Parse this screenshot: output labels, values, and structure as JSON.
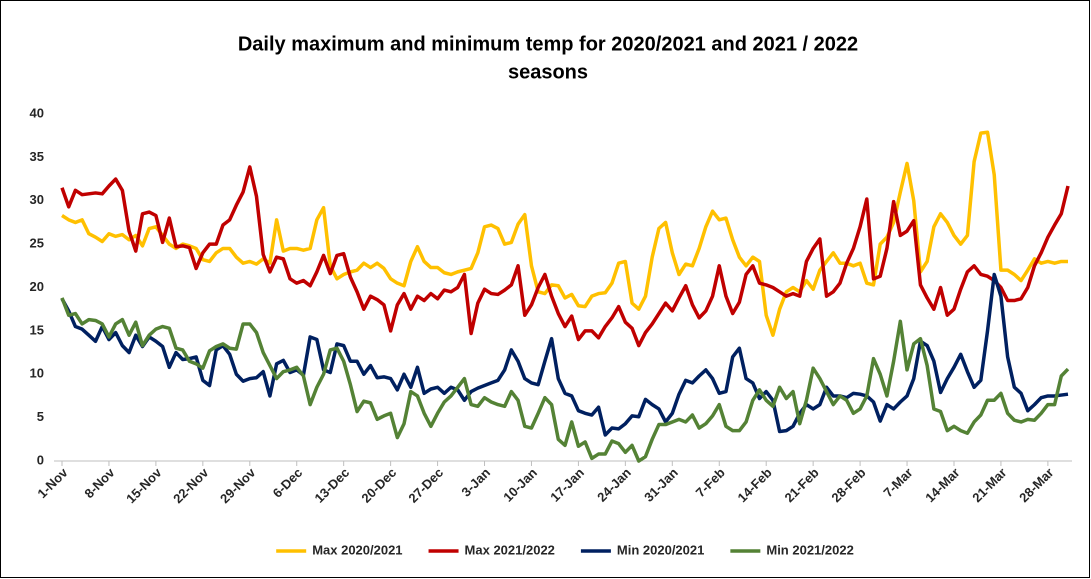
{
  "chart_data": {
    "type": "line",
    "title": "Daily maximum and minimum temp for 2020/2021 and 2021 / 2022",
    "subtitle": "seasons",
    "categories": [
      "1-Nov",
      null,
      null,
      null,
      null,
      null,
      null,
      "8-Nov",
      null,
      null,
      null,
      null,
      null,
      null,
      "15-Nov",
      null,
      null,
      null,
      null,
      null,
      null,
      "22-Nov",
      null,
      null,
      null,
      null,
      null,
      null,
      "29-Nov",
      null,
      null,
      null,
      null,
      null,
      null,
      "6-Dec",
      null,
      null,
      null,
      null,
      null,
      null,
      "13-Dec",
      null,
      null,
      null,
      null,
      null,
      null,
      "20-Dec",
      null,
      null,
      null,
      null,
      null,
      null,
      "27-Dec",
      null,
      null,
      null,
      null,
      null,
      null,
      "3-Jan",
      null,
      null,
      null,
      null,
      null,
      null,
      "10-Jan",
      null,
      null,
      null,
      null,
      null,
      null,
      "17-Jan",
      null,
      null,
      null,
      null,
      null,
      null,
      "24-Jan",
      null,
      null,
      null,
      null,
      null,
      null,
      "31-Jan",
      null,
      null,
      null,
      null,
      null,
      null,
      "7-Feb",
      null,
      null,
      null,
      null,
      null,
      null,
      "14-Feb",
      null,
      null,
      null,
      null,
      null,
      null,
      "21-Feb",
      null,
      null,
      null,
      null,
      null,
      null,
      "28-Feb",
      null,
      null,
      null,
      null,
      null,
      null,
      "7-Mar",
      null,
      null,
      null,
      null,
      null,
      null,
      "14-Mar",
      null,
      null,
      null,
      null,
      null,
      null,
      "21-Mar",
      null,
      null,
      null,
      null,
      null,
      null,
      "28-Mar",
      null,
      null,
      null
    ],
    "series": [
      {
        "name": "Max 2020/2021",
        "color": "#ffc000",
        "values": [
          28.3,
          27.8,
          27.5,
          27.8,
          26.2,
          25.8,
          25.3,
          26.2,
          25.9,
          26.1,
          25.5,
          26.0,
          24.8,
          26.8,
          27.0,
          26.0,
          25.0,
          24.5,
          25.0,
          24.8,
          24.5,
          23.2,
          23.0,
          24.0,
          24.5,
          24.5,
          23.5,
          22.8,
          23.0,
          22.7,
          23.3,
          22.8,
          27.8,
          24.2,
          24.5,
          24.5,
          24.3,
          24.5,
          27.8,
          29.2,
          22.5,
          21.0,
          21.5,
          21.8,
          22.0,
          22.8,
          22.3,
          22.8,
          22.2,
          21.0,
          20.5,
          20.2,
          23.0,
          24.7,
          23.0,
          22.3,
          22.3,
          21.7,
          21.5,
          21.8,
          22.0,
          22.2,
          24.0,
          27.0,
          27.2,
          26.8,
          25.0,
          25.2,
          27.3,
          28.4,
          22.5,
          19.5,
          19.3,
          20.3,
          20.2,
          18.8,
          19.2,
          17.9,
          17.8,
          19.0,
          19.3,
          19.4,
          20.5,
          22.8,
          23.0,
          18.2,
          17.5,
          19.0,
          23.5,
          26.8,
          27.5,
          24.0,
          21.5,
          22.7,
          22.5,
          24.5,
          27.0,
          28.8,
          27.8,
          28.0,
          25.5,
          23.5,
          22.5,
          23.5,
          23.0,
          16.8,
          14.5,
          17.5,
          19.5,
          20.0,
          19.5,
          20.8,
          19.8,
          22.0,
          23.0,
          24.0,
          22.8,
          22.8,
          22.5,
          22.8,
          20.5,
          20.3,
          25.0,
          25.8,
          27.5,
          31.0,
          34.3,
          30.0,
          21.8,
          23.0,
          27.0,
          28.5,
          27.5,
          26.0,
          25.0,
          26.0,
          34.5,
          37.8,
          37.9,
          33.0,
          22.0,
          22.0,
          21.5,
          20.8,
          22.0,
          23.3,
          22.8,
          23.0,
          22.8,
          23.0,
          23.0
        ]
      },
      {
        "name": "Max 2021/2022",
        "color": "#c00000",
        "values": [
          31.5,
          29.3,
          31.2,
          30.7,
          30.8,
          30.9,
          30.8,
          31.7,
          32.5,
          31.2,
          26.5,
          24.2,
          28.5,
          28.7,
          28.3,
          25.2,
          28.0,
          24.7,
          24.8,
          24.6,
          22.2,
          24.0,
          25.0,
          25.0,
          27.2,
          27.8,
          29.5,
          31.0,
          33.9,
          30.5,
          23.8,
          21.8,
          23.5,
          23.3,
          21.0,
          20.5,
          20.8,
          20.2,
          21.8,
          23.7,
          21.6,
          23.7,
          23.9,
          21.2,
          19.5,
          17.5,
          19.0,
          18.6,
          18.0,
          15.0,
          18.0,
          19.3,
          17.5,
          19.0,
          18.5,
          19.3,
          18.7,
          19.7,
          19.5,
          20.0,
          21.5,
          14.7,
          18.2,
          19.8,
          19.3,
          19.2,
          19.7,
          20.3,
          22.5,
          16.8,
          18.0,
          20.0,
          21.5,
          19.0,
          17.0,
          15.5,
          16.7,
          14.0,
          15.0,
          15.0,
          14.2,
          15.5,
          16.5,
          17.8,
          16.0,
          15.3,
          13.3,
          14.8,
          15.8,
          17.0,
          18.2,
          17.3,
          18.8,
          20.2,
          18.0,
          16.5,
          17.3,
          19.0,
          22.5,
          19.0,
          17.0,
          18.3,
          21.5,
          22.5,
          20.5,
          20.3,
          20.0,
          19.5,
          19.0,
          19.3,
          19.0,
          23.0,
          24.5,
          25.6,
          19.0,
          19.5,
          20.5,
          22.8,
          24.5,
          27.0,
          30.2,
          21.0,
          21.3,
          24.5,
          29.9,
          26.0,
          26.5,
          27.7,
          20.3,
          18.8,
          17.5,
          20.0,
          16.8,
          17.5,
          19.8,
          21.8,
          22.5,
          21.5,
          21.3,
          20.8,
          20.0,
          18.5,
          18.5,
          18.7,
          20.0,
          22.5,
          24.0,
          25.8,
          27.2,
          28.5,
          31.7
        ]
      },
      {
        "name": "Min 2020/2021",
        "color": "#002060",
        "values": [
          18.7,
          17.3,
          15.5,
          15.2,
          14.5,
          13.8,
          15.5,
          14.0,
          14.8,
          13.3,
          12.5,
          14.5,
          13.2,
          14.3,
          13.8,
          13.2,
          10.8,
          12.5,
          11.7,
          11.8,
          12.0,
          9.3,
          8.7,
          12.8,
          13.3,
          12.3,
          10.0,
          9.2,
          9.5,
          9.6,
          10.3,
          7.5,
          11.2,
          11.6,
          10.2,
          10.5,
          9.9,
          14.3,
          14.0,
          10.5,
          10.2,
          13.5,
          13.3,
          11.5,
          11.5,
          10.0,
          11.0,
          9.6,
          9.7,
          9.5,
          8.2,
          10.0,
          8.5,
          10.8,
          7.8,
          8.3,
          8.5,
          7.8,
          8.5,
          8.2,
          7.0,
          8.0,
          8.4,
          8.7,
          9.0,
          9.3,
          10.5,
          12.8,
          11.5,
          9.5,
          9.0,
          8.8,
          11.5,
          14.1,
          9.5,
          7.8,
          7.5,
          5.8,
          5.5,
          5.3,
          6.2,
          3.0,
          3.8,
          3.7,
          4.3,
          5.2,
          5.1,
          7.1,
          6.5,
          6.0,
          4.5,
          5.5,
          7.7,
          9.3,
          9.0,
          9.8,
          10.5,
          9.5,
          7.8,
          8.0,
          12.0,
          13.0,
          9.5,
          9.0,
          7.2,
          8.0,
          7.0,
          3.4,
          3.5,
          4.0,
          5.5,
          6.5,
          6.0,
          6.5,
          8.5,
          7.5,
          7.5,
          7.3,
          7.8,
          7.7,
          7.5,
          6.8,
          4.6,
          6.5,
          6.0,
          6.8,
          7.5,
          9.5,
          13.8,
          13.3,
          11.5,
          7.9,
          9.5,
          10.8,
          12.3,
          10.3,
          8.5,
          9.3,
          15.0,
          21.5,
          19.0,
          12.0,
          8.5,
          7.8,
          5.8,
          6.5,
          7.3,
          7.5,
          7.5,
          7.6,
          7.7
        ]
      },
      {
        "name": "Min 2021/2022",
        "color": "#548235",
        "values": [
          18.8,
          16.8,
          17.0,
          15.8,
          16.3,
          16.2,
          15.8,
          14.3,
          15.8,
          16.3,
          14.5,
          16.0,
          13.3,
          14.5,
          15.2,
          15.5,
          15.3,
          13.0,
          12.8,
          11.5,
          11.2,
          10.7,
          12.7,
          13.2,
          13.5,
          13.0,
          12.9,
          15.8,
          15.8,
          14.8,
          12.5,
          11.0,
          9.5,
          10.3,
          10.5,
          10.8,
          9.8,
          6.5,
          8.5,
          10.0,
          12.8,
          13.0,
          11.5,
          8.8,
          5.7,
          6.9,
          6.7,
          4.8,
          5.2,
          5.5,
          2.7,
          4.3,
          8.0,
          7.5,
          5.5,
          4.0,
          5.5,
          6.8,
          7.5,
          8.5,
          9.5,
          6.5,
          6.3,
          7.3,
          6.8,
          6.5,
          6.3,
          8.0,
          7.0,
          4.0,
          3.8,
          5.5,
          7.3,
          6.5,
          2.5,
          1.8,
          4.5,
          1.7,
          2.2,
          0.3,
          0.8,
          0.8,
          2.3,
          2.0,
          1.0,
          1.8,
          0.0,
          0.5,
          2.5,
          4.2,
          4.2,
          4.5,
          4.8,
          4.5,
          5.3,
          3.8,
          4.3,
          5.2,
          6.5,
          4.0,
          3.5,
          3.5,
          4.5,
          7.0,
          8.2,
          7.0,
          6.3,
          8.5,
          7.2,
          8.0,
          4.3,
          7.0,
          10.7,
          9.5,
          8.0,
          6.5,
          7.5,
          7.0,
          5.5,
          6.0,
          7.5,
          11.8,
          10.0,
          7.5,
          11.5,
          16.1,
          10.5,
          13.5,
          14.1,
          11.0,
          6.0,
          5.7,
          3.5,
          4.0,
          3.5,
          3.2,
          4.5,
          5.3,
          7.0,
          7.0,
          7.8,
          5.5,
          4.7,
          4.5,
          4.8,
          4.7,
          5.5,
          6.5,
          6.5,
          9.8,
          10.6
        ]
      }
    ],
    "ylim": [
      0,
      40
    ],
    "yticks": [
      0,
      5,
      10,
      15,
      20,
      25,
      30,
      35,
      40
    ],
    "grid": false,
    "legend": "bottom"
  }
}
